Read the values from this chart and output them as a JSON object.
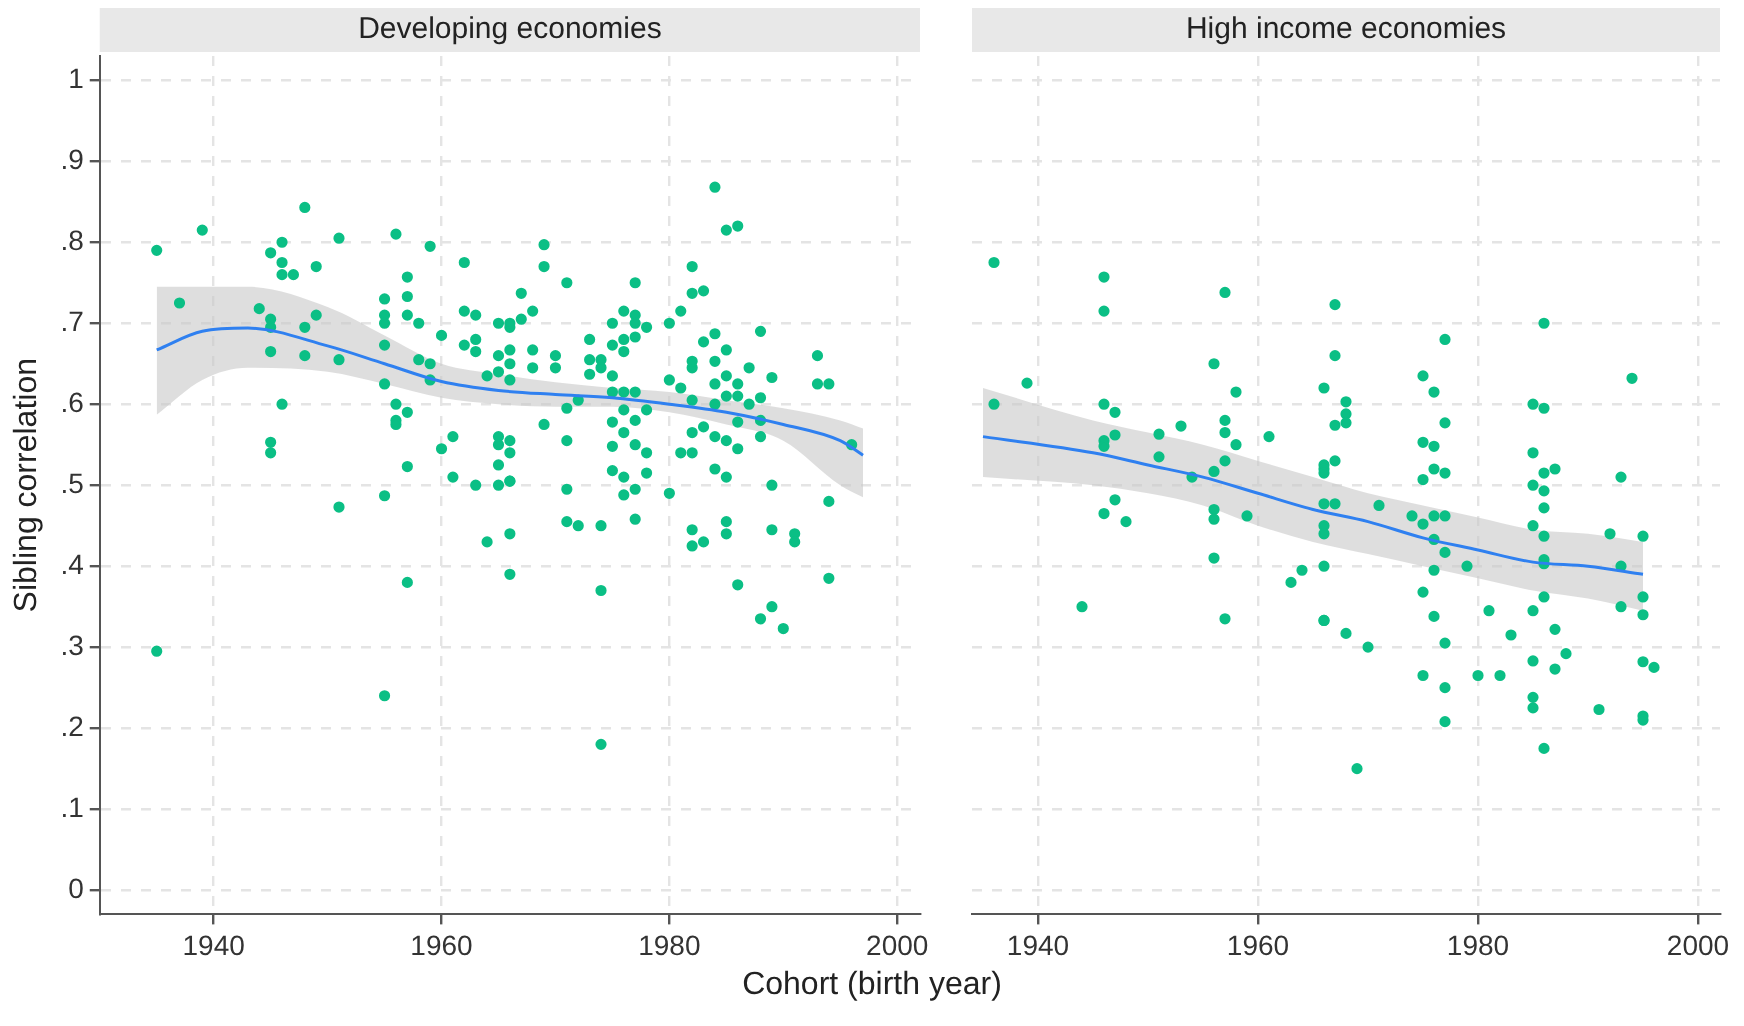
{
  "chart_data": [
    {
      "type": "scatter",
      "title": "Developing economies",
      "xlabel": "Cohort (birth year)",
      "ylabel": "Sibling correlation",
      "xlim": [
        1930,
        2002
      ],
      "xticks": [
        1940,
        1960,
        1980,
        2000
      ],
      "ylim": [
        -0.03,
        1.03
      ],
      "yticks": [
        0,
        {
          "value": 0.1,
          "label": ".1"
        },
        {
          "value": 0.2,
          "label": ".2"
        },
        {
          "value": 0.3,
          "label": ".3"
        },
        {
          "value": 0.4,
          "label": ".4"
        },
        {
          "value": 0.5,
          "label": ".5"
        },
        {
          "value": 0.6,
          "label": ".6"
        },
        {
          "value": 0.7,
          "label": ".7"
        },
        {
          "value": 0.8,
          "label": ".8"
        },
        {
          "value": 0.9,
          "label": ".9"
        },
        1
      ],
      "grid": true,
      "legend": false,
      "series": [
        {
          "marker": "circle",
          "color": "#0bbf85",
          "x": [
            1935,
            1935,
            1937,
            1939,
            1944,
            1945,
            1945,
            1945,
            1945,
            1945,
            1945,
            1946,
            1946,
            1946,
            1947,
            1946,
            1948,
            1948,
            1948,
            1949,
            1949,
            1951,
            1951,
            1951,
            1955,
            1955,
            1955,
            1955,
            1955,
            1955,
            1955,
            1956,
            1956,
            1956,
            1956,
            1957,
            1957,
            1957,
            1957,
            1957,
            1957,
            1958,
            1958,
            1959,
            1959,
            1959,
            1960,
            1960,
            1961,
            1961,
            1962,
            1962,
            1962,
            1963,
            1963,
            1963,
            1963,
            1964,
            1964,
            1965,
            1965,
            1965,
            1965,
            1965,
            1965,
            1965,
            1966,
            1966,
            1966,
            1966,
            1966,
            1966,
            1966,
            1966,
            1966,
            1966,
            1966,
            1967,
            1967,
            1968,
            1968,
            1968,
            1969,
            1969,
            1969,
            1970,
            1970,
            1971,
            1971,
            1971,
            1971,
            1971,
            1972,
            1972,
            1973,
            1973,
            1973,
            1974,
            1974,
            1974,
            1974,
            1974,
            1975,
            1975,
            1975,
            1975,
            1975,
            1975,
            1975,
            1976,
            1976,
            1976,
            1976,
            1976,
            1976,
            1976,
            1976,
            1977,
            1977,
            1977,
            1977,
            1977,
            1977,
            1977,
            1977,
            1977,
            1978,
            1978,
            1978,
            1978,
            1980,
            1980,
            1980,
            1981,
            1981,
            1981,
            1982,
            1982,
            1982,
            1982,
            1982,
            1982,
            1982,
            1982,
            1982,
            1983,
            1983,
            1983,
            1983,
            1984,
            1984,
            1984,
            1984,
            1984,
            1984,
            1984,
            1985,
            1985,
            1985,
            1985,
            1985,
            1985,
            1985,
            1985,
            1986,
            1986,
            1986,
            1986,
            1986,
            1986,
            1987,
            1987,
            1988,
            1988,
            1988,
            1988,
            1988,
            1989,
            1989,
            1989,
            1989,
            1990,
            1991,
            1991,
            1993,
            1993,
            1994,
            1994,
            1994,
            1996
          ],
          "values": [
            0.79,
            0.295,
            0.725,
            0.815,
            0.718,
            0.787,
            0.705,
            0.695,
            0.665,
            0.553,
            0.54,
            0.8,
            0.775,
            0.76,
            0.76,
            0.6,
            0.843,
            0.695,
            0.66,
            0.77,
            0.71,
            0.805,
            0.655,
            0.473,
            0.73,
            0.71,
            0.7,
            0.673,
            0.625,
            0.487,
            0.24,
            0.81,
            0.6,
            0.58,
            0.575,
            0.757,
            0.733,
            0.71,
            0.59,
            0.523,
            0.38,
            0.7,
            0.655,
            0.795,
            0.65,
            0.63,
            0.685,
            0.545,
            0.56,
            0.51,
            0.775,
            0.715,
            0.673,
            0.71,
            0.68,
            0.665,
            0.5,
            0.635,
            0.43,
            0.7,
            0.66,
            0.64,
            0.56,
            0.55,
            0.525,
            0.5,
            0.695,
            0.63,
            0.44,
            0.39,
            0.7,
            0.667,
            0.65,
            0.555,
            0.505,
            0.54,
            0.505,
            0.737,
            0.705,
            0.715,
            0.667,
            0.645,
            0.797,
            0.77,
            0.575,
            0.66,
            0.645,
            0.75,
            0.595,
            0.555,
            0.495,
            0.455,
            0.605,
            0.45,
            0.68,
            0.655,
            0.637,
            0.655,
            0.645,
            0.45,
            0.37,
            0.18,
            0.7,
            0.673,
            0.635,
            0.615,
            0.578,
            0.548,
            0.518,
            0.715,
            0.68,
            0.665,
            0.615,
            0.593,
            0.565,
            0.51,
            0.488,
            0.75,
            0.71,
            0.683,
            0.615,
            0.58,
            0.55,
            0.495,
            0.458,
            0.7,
            0.695,
            0.593,
            0.54,
            0.515,
            0.7,
            0.63,
            0.49,
            0.715,
            0.62,
            0.54,
            0.77,
            0.645,
            0.565,
            0.54,
            0.445,
            0.425,
            0.737,
            0.653,
            0.605,
            0.74,
            0.677,
            0.572,
            0.43,
            0.868,
            0.687,
            0.653,
            0.625,
            0.6,
            0.56,
            0.52,
            0.815,
            0.667,
            0.635,
            0.61,
            0.555,
            0.51,
            0.455,
            0.44,
            0.82,
            0.625,
            0.61,
            0.578,
            0.545,
            0.377,
            0.645,
            0.6,
            0.69,
            0.608,
            0.58,
            0.56,
            0.335,
            0.633,
            0.5,
            0.445,
            0.35,
            0.323,
            0.44,
            0.43,
            0.66,
            0.625,
            0.625,
            0.48,
            0.385,
            0.55
          ]
        },
        {
          "type": "line",
          "color": "#2f80f0",
          "x": [
            1935,
            1939,
            1943,
            1950,
            1955,
            1960,
            1965,
            1970,
            1975,
            1980,
            1985,
            1990,
            1995,
            1997
          ],
          "values": [
            0.667,
            0.69,
            0.694,
            0.672,
            0.65,
            0.628,
            0.617,
            0.612,
            0.608,
            0.6,
            0.59,
            0.575,
            0.555,
            0.537
          ],
          "lower": [
            0.587,
            0.63,
            0.645,
            0.64,
            0.625,
            0.608,
            0.6,
            0.597,
            0.597,
            0.59,
            0.575,
            0.555,
            0.5,
            0.485
          ],
          "upper": [
            0.745,
            0.745,
            0.745,
            0.72,
            0.685,
            0.65,
            0.637,
            0.627,
            0.62,
            0.615,
            0.605,
            0.595,
            0.58,
            0.57
          ]
        }
      ]
    },
    {
      "type": "scatter",
      "title": "High income economies",
      "xlim": [
        1934,
        2002
      ],
      "xticks": [
        1940,
        1960,
        1980,
        2000
      ],
      "ylim": [
        -0.03,
        1.03
      ],
      "yticks": [
        0,
        0.1,
        0.2,
        0.3,
        0.4,
        0.5,
        0.6,
        0.7,
        0.8,
        0.9,
        1
      ],
      "tick_labels": "x",
      "grid": true,
      "legend": false,
      "series": [
        {
          "marker": "circle",
          "color": "#0bbf85",
          "x": [
            1936,
            1936,
            1939,
            1944,
            1946,
            1946,
            1946,
            1946,
            1946,
            1946,
            1947,
            1947,
            1947,
            1948,
            1951,
            1951,
            1953,
            1954,
            1956,
            1956,
            1956,
            1956,
            1956,
            1957,
            1957,
            1957,
            1957,
            1957,
            1958,
            1958,
            1959,
            1961,
            1963,
            1964,
            1966,
            1966,
            1966,
            1966,
            1966,
            1966,
            1966,
            1966,
            1966,
            1967,
            1967,
            1967,
            1967,
            1967,
            1966,
            1968,
            1968,
            1968,
            1968,
            1969,
            1970,
            1971,
            1974,
            1975,
            1975,
            1975,
            1975,
            1975,
            1975,
            1976,
            1976,
            1976,
            1976,
            1976,
            1976,
            1976,
            1977,
            1977,
            1977,
            1977,
            1977,
            1977,
            1977,
            1977,
            1979,
            1980,
            1981,
            1982,
            1983,
            1985,
            1985,
            1985,
            1985,
            1985,
            1985,
            1985,
            1985,
            1986,
            1986,
            1986,
            1986,
            1986,
            1986,
            1986,
            1986,
            1986,
            1986,
            1987,
            1987,
            1987,
            1988,
            1991,
            1992,
            1993,
            1993,
            1993,
            1994,
            1995,
            1995,
            1995,
            1995,
            1995,
            1995,
            1996
          ],
          "values": [
            0.775,
            0.6,
            0.626,
            0.35,
            0.757,
            0.715,
            0.6,
            0.555,
            0.548,
            0.465,
            0.59,
            0.562,
            0.482,
            0.455,
            0.563,
            0.535,
            0.573,
            0.51,
            0.65,
            0.517,
            0.47,
            0.458,
            0.41,
            0.738,
            0.58,
            0.565,
            0.53,
            0.335,
            0.615,
            0.55,
            0.462,
            0.56,
            0.38,
            0.395,
            0.62,
            0.525,
            0.52,
            0.515,
            0.477,
            0.45,
            0.44,
            0.4,
            0.333,
            0.723,
            0.66,
            0.574,
            0.53,
            0.477,
            0.333,
            0.603,
            0.588,
            0.577,
            0.317,
            0.15,
            0.3,
            0.475,
            0.462,
            0.635,
            0.553,
            0.507,
            0.452,
            0.368,
            0.265,
            0.615,
            0.548,
            0.52,
            0.462,
            0.433,
            0.395,
            0.338,
            0.68,
            0.577,
            0.515,
            0.462,
            0.417,
            0.305,
            0.25,
            0.208,
            0.4,
            0.265,
            0.345,
            0.265,
            0.315,
            0.6,
            0.54,
            0.5,
            0.45,
            0.345,
            0.283,
            0.238,
            0.225,
            0.7,
            0.595,
            0.515,
            0.493,
            0.472,
            0.437,
            0.408,
            0.403,
            0.362,
            0.175,
            0.52,
            0.322,
            0.273,
            0.292,
            0.223,
            0.44,
            0.51,
            0.4,
            0.35,
            0.632,
            0.437,
            0.362,
            0.34,
            0.282,
            0.215,
            0.21,
            0.275
          ]
        },
        {
          "type": "line",
          "color": "#2f80f0",
          "x": [
            1935,
            1945,
            1950,
            1955,
            1960,
            1965,
            1970,
            1975,
            1980,
            1985,
            1990,
            1995
          ],
          "values": [
            0.56,
            0.54,
            0.525,
            0.51,
            0.49,
            0.47,
            0.455,
            0.435,
            0.42,
            0.405,
            0.4,
            0.39
          ],
          "lower": [
            0.51,
            0.5,
            0.49,
            0.475,
            0.45,
            0.43,
            0.415,
            0.4,
            0.385,
            0.37,
            0.36,
            0.345
          ],
          "upper": [
            0.62,
            0.58,
            0.565,
            0.55,
            0.53,
            0.51,
            0.49,
            0.475,
            0.46,
            0.445,
            0.44,
            0.43
          ]
        }
      ]
    }
  ]
}
